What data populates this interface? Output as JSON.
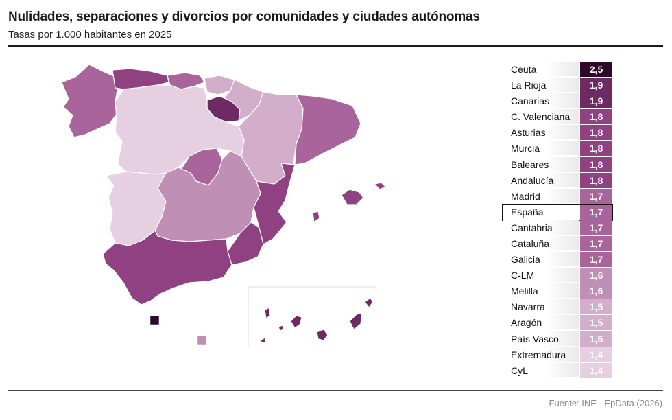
{
  "title": "Nulidades, separaciones y divorcios por comunidades y ciudades autónomas",
  "subtitle": "Tasas por 1.000 habitantes en 2025",
  "source": "Fuente: INE - EpData (2026)",
  "colors": {
    "2.5": "#2e0a28",
    "1.9": "#6d2a63",
    "1.8": "#8f4182",
    "1.7": "#a9659b",
    "1.6": "#c08fb5",
    "1.5": "#d3aecb",
    "1.4": "#e6cfe0"
  },
  "chart_data": {
    "type": "table",
    "title": "Nulidades, separaciones y divorcios por comunidades y ciudades autónomas",
    "subtitle": "Tasas por 1.000 habitantes en 2025",
    "rows": [
      {
        "name": "Ceuta",
        "value": 2.5,
        "label": "2,5"
      },
      {
        "name": "La Rioja",
        "value": 1.9,
        "label": "1,9"
      },
      {
        "name": "Canarias",
        "value": 1.9,
        "label": "1,9"
      },
      {
        "name": "C. Valenciana",
        "value": 1.8,
        "label": "1,8"
      },
      {
        "name": "Asturias",
        "value": 1.8,
        "label": "1,8"
      },
      {
        "name": "Murcia",
        "value": 1.8,
        "label": "1,8"
      },
      {
        "name": "Baleares",
        "value": 1.8,
        "label": "1,8"
      },
      {
        "name": "Andalucía",
        "value": 1.8,
        "label": "1,8"
      },
      {
        "name": "Madrid",
        "value": 1.7,
        "label": "1,7"
      },
      {
        "name": "España",
        "value": 1.7,
        "label": "1,7",
        "highlight": true
      },
      {
        "name": "Cantabria",
        "value": 1.7,
        "label": "1,7"
      },
      {
        "name": "Cataluña",
        "value": 1.7,
        "label": "1,7"
      },
      {
        "name": "Galicia",
        "value": 1.7,
        "label": "1,7"
      },
      {
        "name": "C-LM",
        "value": 1.6,
        "label": "1,6"
      },
      {
        "name": "Melilla",
        "value": 1.6,
        "label": "1,6"
      },
      {
        "name": "Navarra",
        "value": 1.5,
        "label": "1,5"
      },
      {
        "name": "Aragón",
        "value": 1.5,
        "label": "1,5"
      },
      {
        "name": "País Vasco",
        "value": 1.5,
        "label": "1,5"
      },
      {
        "name": "Extremadura",
        "value": 1.4,
        "label": "1,4"
      },
      {
        "name": "CyL",
        "value": 1.4,
        "label": "1,4"
      }
    ]
  }
}
